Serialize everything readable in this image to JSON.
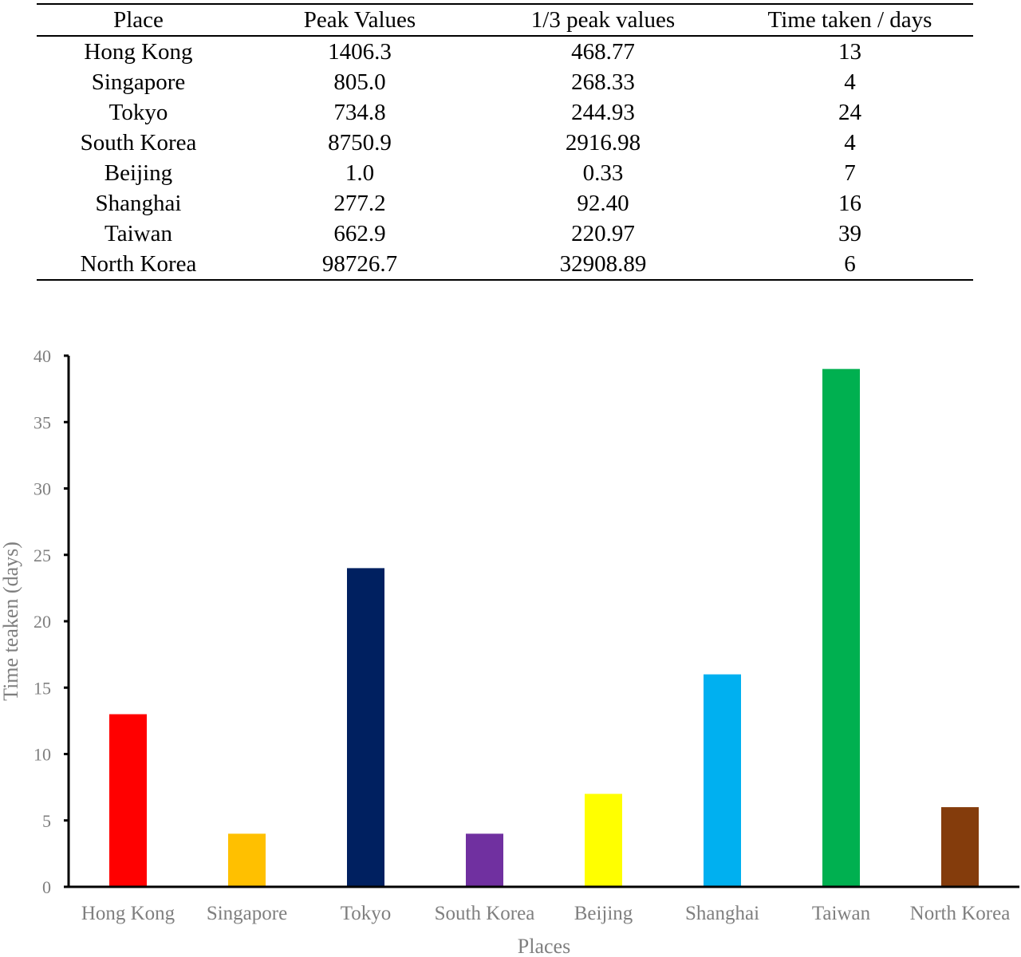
{
  "table": {
    "headers": [
      "Place",
      "Peak Values",
      "1/3 peak values",
      "Time taken / days"
    ],
    "rows": [
      [
        "Hong Kong",
        "1406.3",
        "468.77",
        "13"
      ],
      [
        "Singapore",
        "805.0",
        "268.33",
        "4"
      ],
      [
        "Tokyo",
        "734.8",
        "244.93",
        "24"
      ],
      [
        "South Korea",
        "8750.9",
        "2916.98",
        "4"
      ],
      [
        "Beijing",
        "1.0",
        "0.33",
        "7"
      ],
      [
        "Shanghai",
        "277.2",
        "92.40",
        "16"
      ],
      [
        "Taiwan",
        "662.9",
        "220.97",
        "39"
      ],
      [
        "North Korea",
        "98726.7",
        "32908.89",
        "6"
      ]
    ]
  },
  "chart_data": {
    "type": "bar",
    "categories": [
      "Hong Kong",
      "Singapore",
      "Tokyo",
      "South Korea",
      "Beijing",
      "Shanghai",
      "Taiwan",
      "North Korea"
    ],
    "values": [
      13,
      4,
      24,
      4,
      7,
      16,
      39,
      6
    ],
    "colors": [
      "#ff0000",
      "#ffc000",
      "#002060",
      "#7030a0",
      "#ffff00",
      "#00b0f0",
      "#00b050",
      "#843c0c"
    ],
    "xlabel": "Places",
    "ylabel": "Time teaken (days)",
    "ylim": [
      0,
      40
    ],
    "yticks": [
      0,
      5,
      10,
      15,
      20,
      25,
      30,
      35,
      40
    ],
    "grid": false,
    "legend": "none"
  }
}
